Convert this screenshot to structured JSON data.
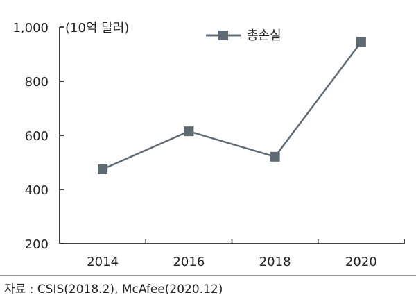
{
  "chart_data": {
    "type": "line",
    "unit_label": "(10억 달러)",
    "categories": [
      "2014",
      "2016",
      "2018",
      "2020"
    ],
    "series": [
      {
        "name": "총손실",
        "values": [
          475,
          615,
          521,
          945
        ],
        "color": "#5f6b72",
        "marker": "square"
      }
    ],
    "ylim": [
      200,
      1000
    ],
    "yticks": [
      200,
      400,
      600,
      800,
      1000
    ],
    "ytick_labels": [
      "200",
      "400",
      "600",
      "800",
      "1,000"
    ],
    "grid": false,
    "legend_position": "top-right"
  },
  "source_note": "자료 : CSIS(2018.2), McAfee(2020.12)"
}
